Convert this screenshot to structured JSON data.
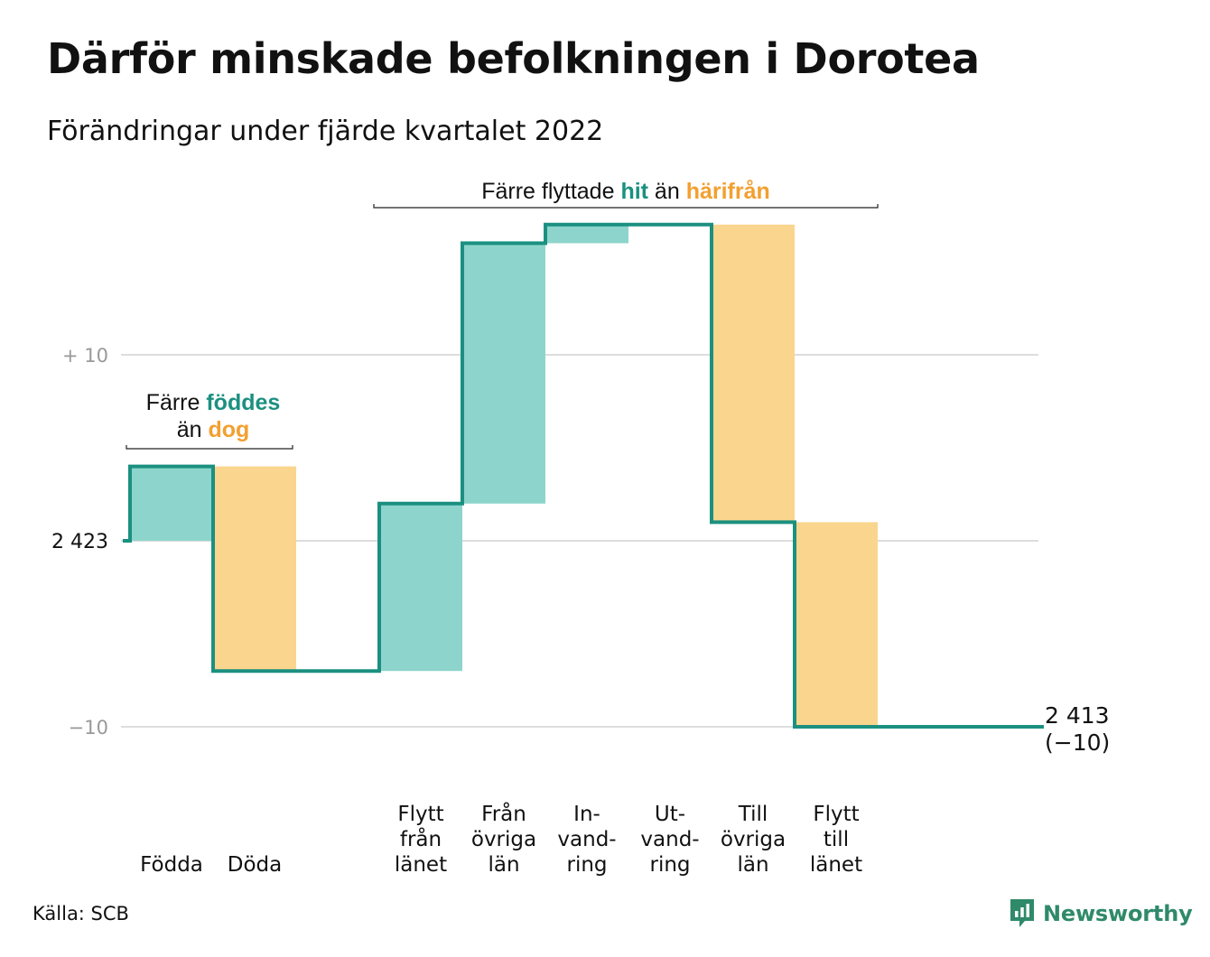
{
  "title": "Därför minskade befolkningen i Dorotea",
  "subtitle": "Förändringar under fjärde kvartalet 2022",
  "source": "Källa: SCB",
  "brand": "Newsworthy",
  "colors": {
    "line": "#1b9080",
    "increase": "#8dd5cc",
    "decrease": "#fad58d",
    "hit": "#1b9080",
    "harifran": "#f2a030",
    "grid": "#dddddd",
    "axis_label": "#999999",
    "brand": "#2f8a6a"
  },
  "annotations": {
    "births": {
      "prefix": "Färre",
      "highlight1": "föddes",
      "middle": "än",
      "highlight2": "dog"
    },
    "migration": {
      "prefix": "Färre flyttade",
      "highlight1": "hit",
      "middle": "än",
      "highlight2": "härifrån"
    }
  },
  "end_label": {
    "value": "2 413",
    "change": "(−10)"
  },
  "chart_data": {
    "type": "waterfall",
    "title": "Därför minskade befolkningen i Dorotea",
    "subtitle": "Förändringar under fjärde kvartalet 2022",
    "start_value": 2423,
    "start_label": "2 423",
    "end_value": 2413,
    "net_change": -10,
    "y_ticks": [
      {
        "offset": 10,
        "label": "+ 10"
      },
      {
        "offset": 0,
        "label": "2 423"
      },
      {
        "offset": -10,
        "label": "−10"
      }
    ],
    "ylim": [
      -11,
      17
    ],
    "grid": true,
    "steps": [
      {
        "category": "Födda",
        "label_lines": [
          "Födda"
        ],
        "value": 4
      },
      {
        "category": "Döda",
        "label_lines": [
          "Döda"
        ],
        "value": -11
      },
      {
        "category": "",
        "label_lines": [],
        "value": 0
      },
      {
        "category": "Flytt från länet",
        "label_lines": [
          "Flytt",
          "från",
          "länet"
        ],
        "value": 9
      },
      {
        "category": "Från övriga län",
        "label_lines": [
          "Från",
          "övriga",
          "län"
        ],
        "value": 14
      },
      {
        "category": "Invandring",
        "label_lines": [
          "In-",
          "vand-",
          "ring"
        ],
        "value": 1
      },
      {
        "category": "Utvandring",
        "label_lines": [
          "Ut-",
          "vand-",
          "ring"
        ],
        "value": 0
      },
      {
        "category": "Till övriga län",
        "label_lines": [
          "Till",
          "övriga",
          "län"
        ],
        "value": -16
      },
      {
        "category": "Flytt till länet",
        "label_lines": [
          "Flytt",
          "till",
          "länet"
        ],
        "value": -11
      },
      {
        "category": "",
        "label_lines": [],
        "value": 0
      },
      {
        "category": "",
        "label_lines": [],
        "value": 0
      }
    ]
  }
}
